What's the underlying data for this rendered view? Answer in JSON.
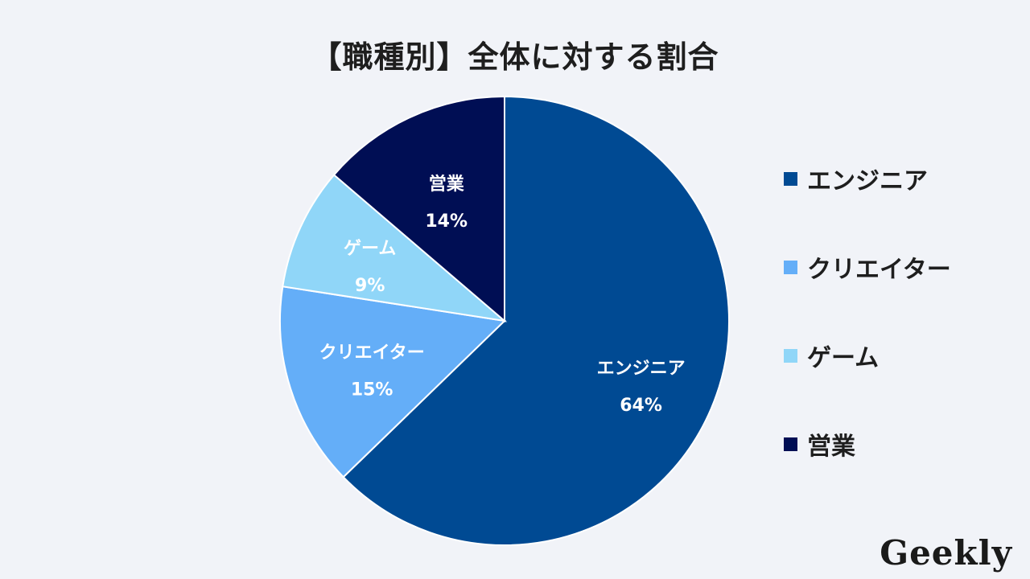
{
  "chart_data": {
    "type": "pie",
    "title": "【職種別】全体に対する割合",
    "start_angle_deg": 0,
    "direction": "clockwise",
    "legend_position": "right",
    "slices": [
      {
        "label": "エンジニア",
        "value": 64,
        "value_label": "64%",
        "color": "#004a93"
      },
      {
        "label": "クリエイター",
        "value": 15,
        "value_label": "15%",
        "color": "#64aef8"
      },
      {
        "label": "ゲーム",
        "value": 9,
        "value_label": "9%",
        "color": "#90d6f8"
      },
      {
        "label": "営業",
        "value": 14,
        "value_label": "14%",
        "color": "#000e54"
      }
    ]
  },
  "brand": {
    "logo_text": "Geekly"
  }
}
